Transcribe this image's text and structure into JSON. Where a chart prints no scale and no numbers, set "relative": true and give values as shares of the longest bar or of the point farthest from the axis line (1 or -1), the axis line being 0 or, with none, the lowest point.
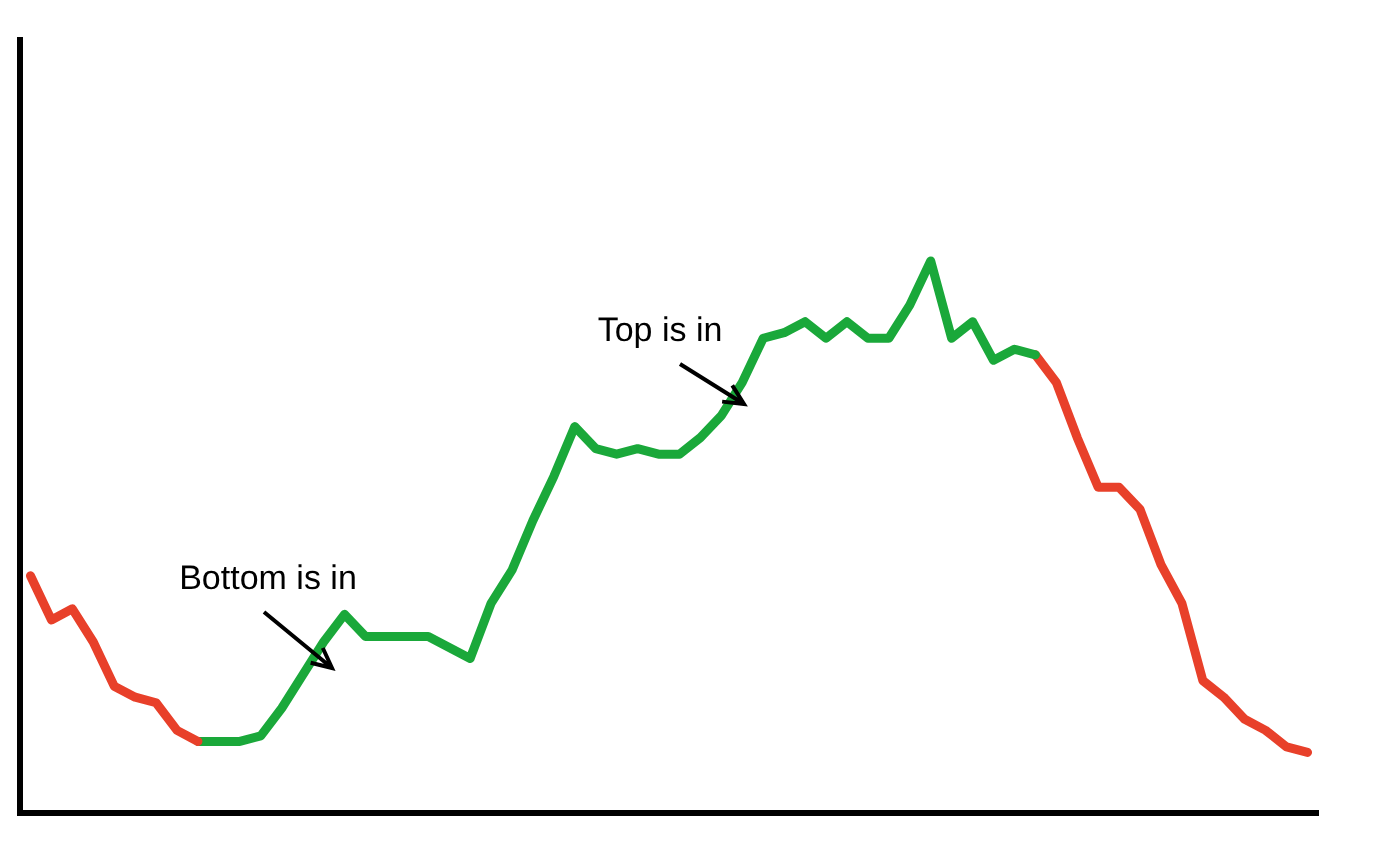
{
  "chart_data": {
    "type": "line",
    "relative": true,
    "grid": false,
    "legend": false,
    "marker": "none",
    "line_style": "solid",
    "categories": [
      null,
      null,
      null,
      null,
      null,
      null,
      null,
      null,
      null,
      null,
      null,
      null,
      null,
      null,
      null,
      null,
      null,
      null,
      null,
      null,
      null,
      null,
      null,
      null,
      null,
      null,
      null,
      null,
      null,
      null,
      null,
      null,
      null,
      null,
      null,
      null,
      null,
      null,
      null,
      null,
      null,
      null,
      null,
      null,
      null,
      null,
      null,
      null,
      null,
      null,
      null,
      null,
      null,
      null,
      null,
      null,
      null,
      null,
      null,
      null,
      null,
      null
    ],
    "series": [
      {
        "color": "#e8402a",
        "values": [
          0.43,
          0.35,
          0.37,
          0.31,
          0.23,
          0.21,
          0.2,
          0.15,
          0.13,
          null,
          null,
          null,
          null,
          null,
          null,
          null,
          null,
          null,
          null,
          null,
          null,
          null,
          null,
          null,
          null,
          null,
          null,
          null,
          null,
          null,
          null,
          null,
          null,
          null,
          null,
          null,
          null,
          null,
          null,
          null,
          null,
          null,
          null,
          null,
          null,
          null,
          null,
          null,
          null,
          null,
          null,
          null,
          null,
          null,
          null,
          null,
          null,
          null,
          null,
          null,
          null,
          null
        ]
      },
      {
        "color": "#1aa83a",
        "values": [
          null,
          null,
          null,
          null,
          null,
          null,
          null,
          null,
          0.13,
          0.13,
          0.13,
          0.14,
          0.19,
          0.25,
          0.31,
          0.36,
          0.32,
          0.32,
          0.32,
          0.32,
          0.3,
          0.28,
          0.38,
          0.44,
          0.53,
          0.61,
          0.7,
          0.66,
          0.65,
          0.66,
          0.65,
          0.65,
          0.68,
          0.72,
          0.78,
          0.86,
          0.87,
          0.89,
          0.86,
          0.89,
          0.86,
          0.86,
          0.92,
          1.0,
          0.86,
          0.89,
          0.82,
          0.84,
          0.83,
          null,
          null,
          null,
          null,
          null,
          null,
          null,
          null,
          null,
          null,
          null,
          null,
          null
        ]
      },
      {
        "color": "#e8402a",
        "values": [
          null,
          null,
          null,
          null,
          null,
          null,
          null,
          null,
          null,
          null,
          null,
          null,
          null,
          null,
          null,
          null,
          null,
          null,
          null,
          null,
          null,
          null,
          null,
          null,
          null,
          null,
          null,
          null,
          null,
          null,
          null,
          null,
          null,
          null,
          null,
          null,
          null,
          null,
          null,
          null,
          null,
          null,
          null,
          null,
          null,
          null,
          null,
          null,
          0.83,
          0.78,
          0.68,
          0.59,
          0.59,
          0.55,
          0.45,
          0.38,
          0.24,
          0.21,
          0.17,
          0.15,
          0.12,
          0.11
        ]
      }
    ],
    "annotations": [
      "Bottom is in",
      "Top is in"
    ]
  }
}
